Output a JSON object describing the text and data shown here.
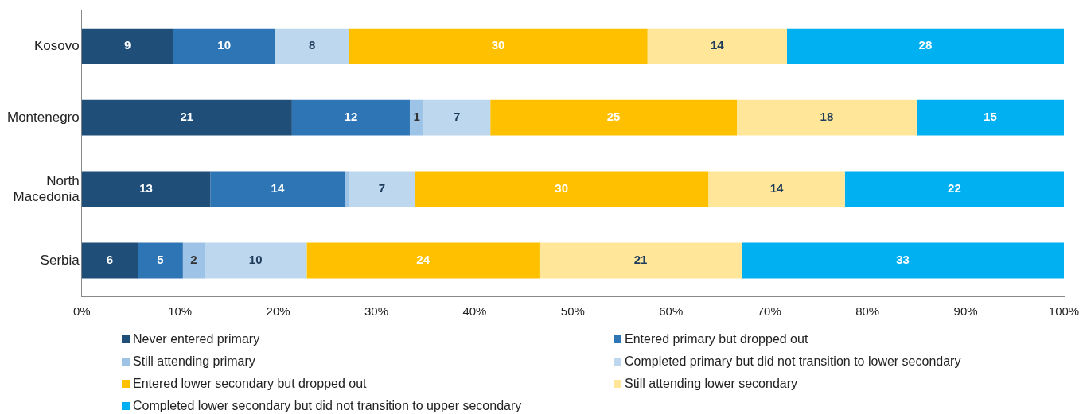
{
  "chart_data": {
    "type": "bar",
    "orientation": "horizontal",
    "stacked": true,
    "categories": [
      "Kosovo",
      "Montenegro",
      "North Macedonia",
      "Serbia"
    ],
    "series": [
      {
        "name": "Never entered primary",
        "color": "#1f4e79",
        "values": [
          9.3,
          21.4,
          13.1,
          5.7
        ],
        "value_labels": [
          "9",
          "21",
          "13",
          "6"
        ]
      },
      {
        "name": "Entered primary but dropped out",
        "color": "#2e75b6",
        "values": [
          10.4,
          12.0,
          13.7,
          4.6
        ],
        "value_labels": [
          "10",
          "12",
          "14",
          "5"
        ]
      },
      {
        "name": "Still attending primary",
        "color": "#9dc3e6",
        "values": [
          null,
          1.4,
          0.4,
          2.2
        ],
        "value_labels": [
          null,
          "1",
          null,
          "2"
        ]
      },
      {
        "name": "Completed primary but did not transition to lower secondary",
        "color": "#bdd7ee",
        "values": [
          7.5,
          6.8,
          6.7,
          10.4
        ],
        "value_labels": [
          "8",
          "7",
          "7",
          "10"
        ]
      },
      {
        "name": "Entered lower secondary but dropped out",
        "color": "#ffc000",
        "values": [
          30.4,
          25.1,
          29.9,
          23.7
        ],
        "value_labels": [
          "30",
          "25",
          "30",
          "24"
        ]
      },
      {
        "name": "Still attending lower secondary",
        "color": "#ffe699",
        "values": [
          14.2,
          18.3,
          13.9,
          20.6
        ],
        "value_labels": [
          "14",
          "18",
          "14",
          "21"
        ]
      },
      {
        "name": "Completed lower secondary but did not transition to upper secondary",
        "color": "#00b0f0",
        "values": [
          28.2,
          15.0,
          22.3,
          32.8
        ],
        "value_labels": [
          "28",
          "15",
          "22",
          "33"
        ]
      }
    ],
    "xlim": [
      0,
      100
    ],
    "xticks": [
      {
        "value": 0,
        "label": "0%"
      },
      {
        "value": 10,
        "label": "10%"
      },
      {
        "value": 20,
        "label": "20%"
      },
      {
        "value": 30,
        "label": "30%"
      },
      {
        "value": 40,
        "label": "40%"
      },
      {
        "value": 50,
        "label": "50%"
      },
      {
        "value": 60,
        "label": "60%"
      },
      {
        "value": 70,
        "label": "70%"
      },
      {
        "value": 80,
        "label": "80%"
      },
      {
        "value": 90,
        "label": "90%"
      },
      {
        "value": 100,
        "label": "100%"
      }
    ],
    "grid": false,
    "legend": "bottom"
  }
}
